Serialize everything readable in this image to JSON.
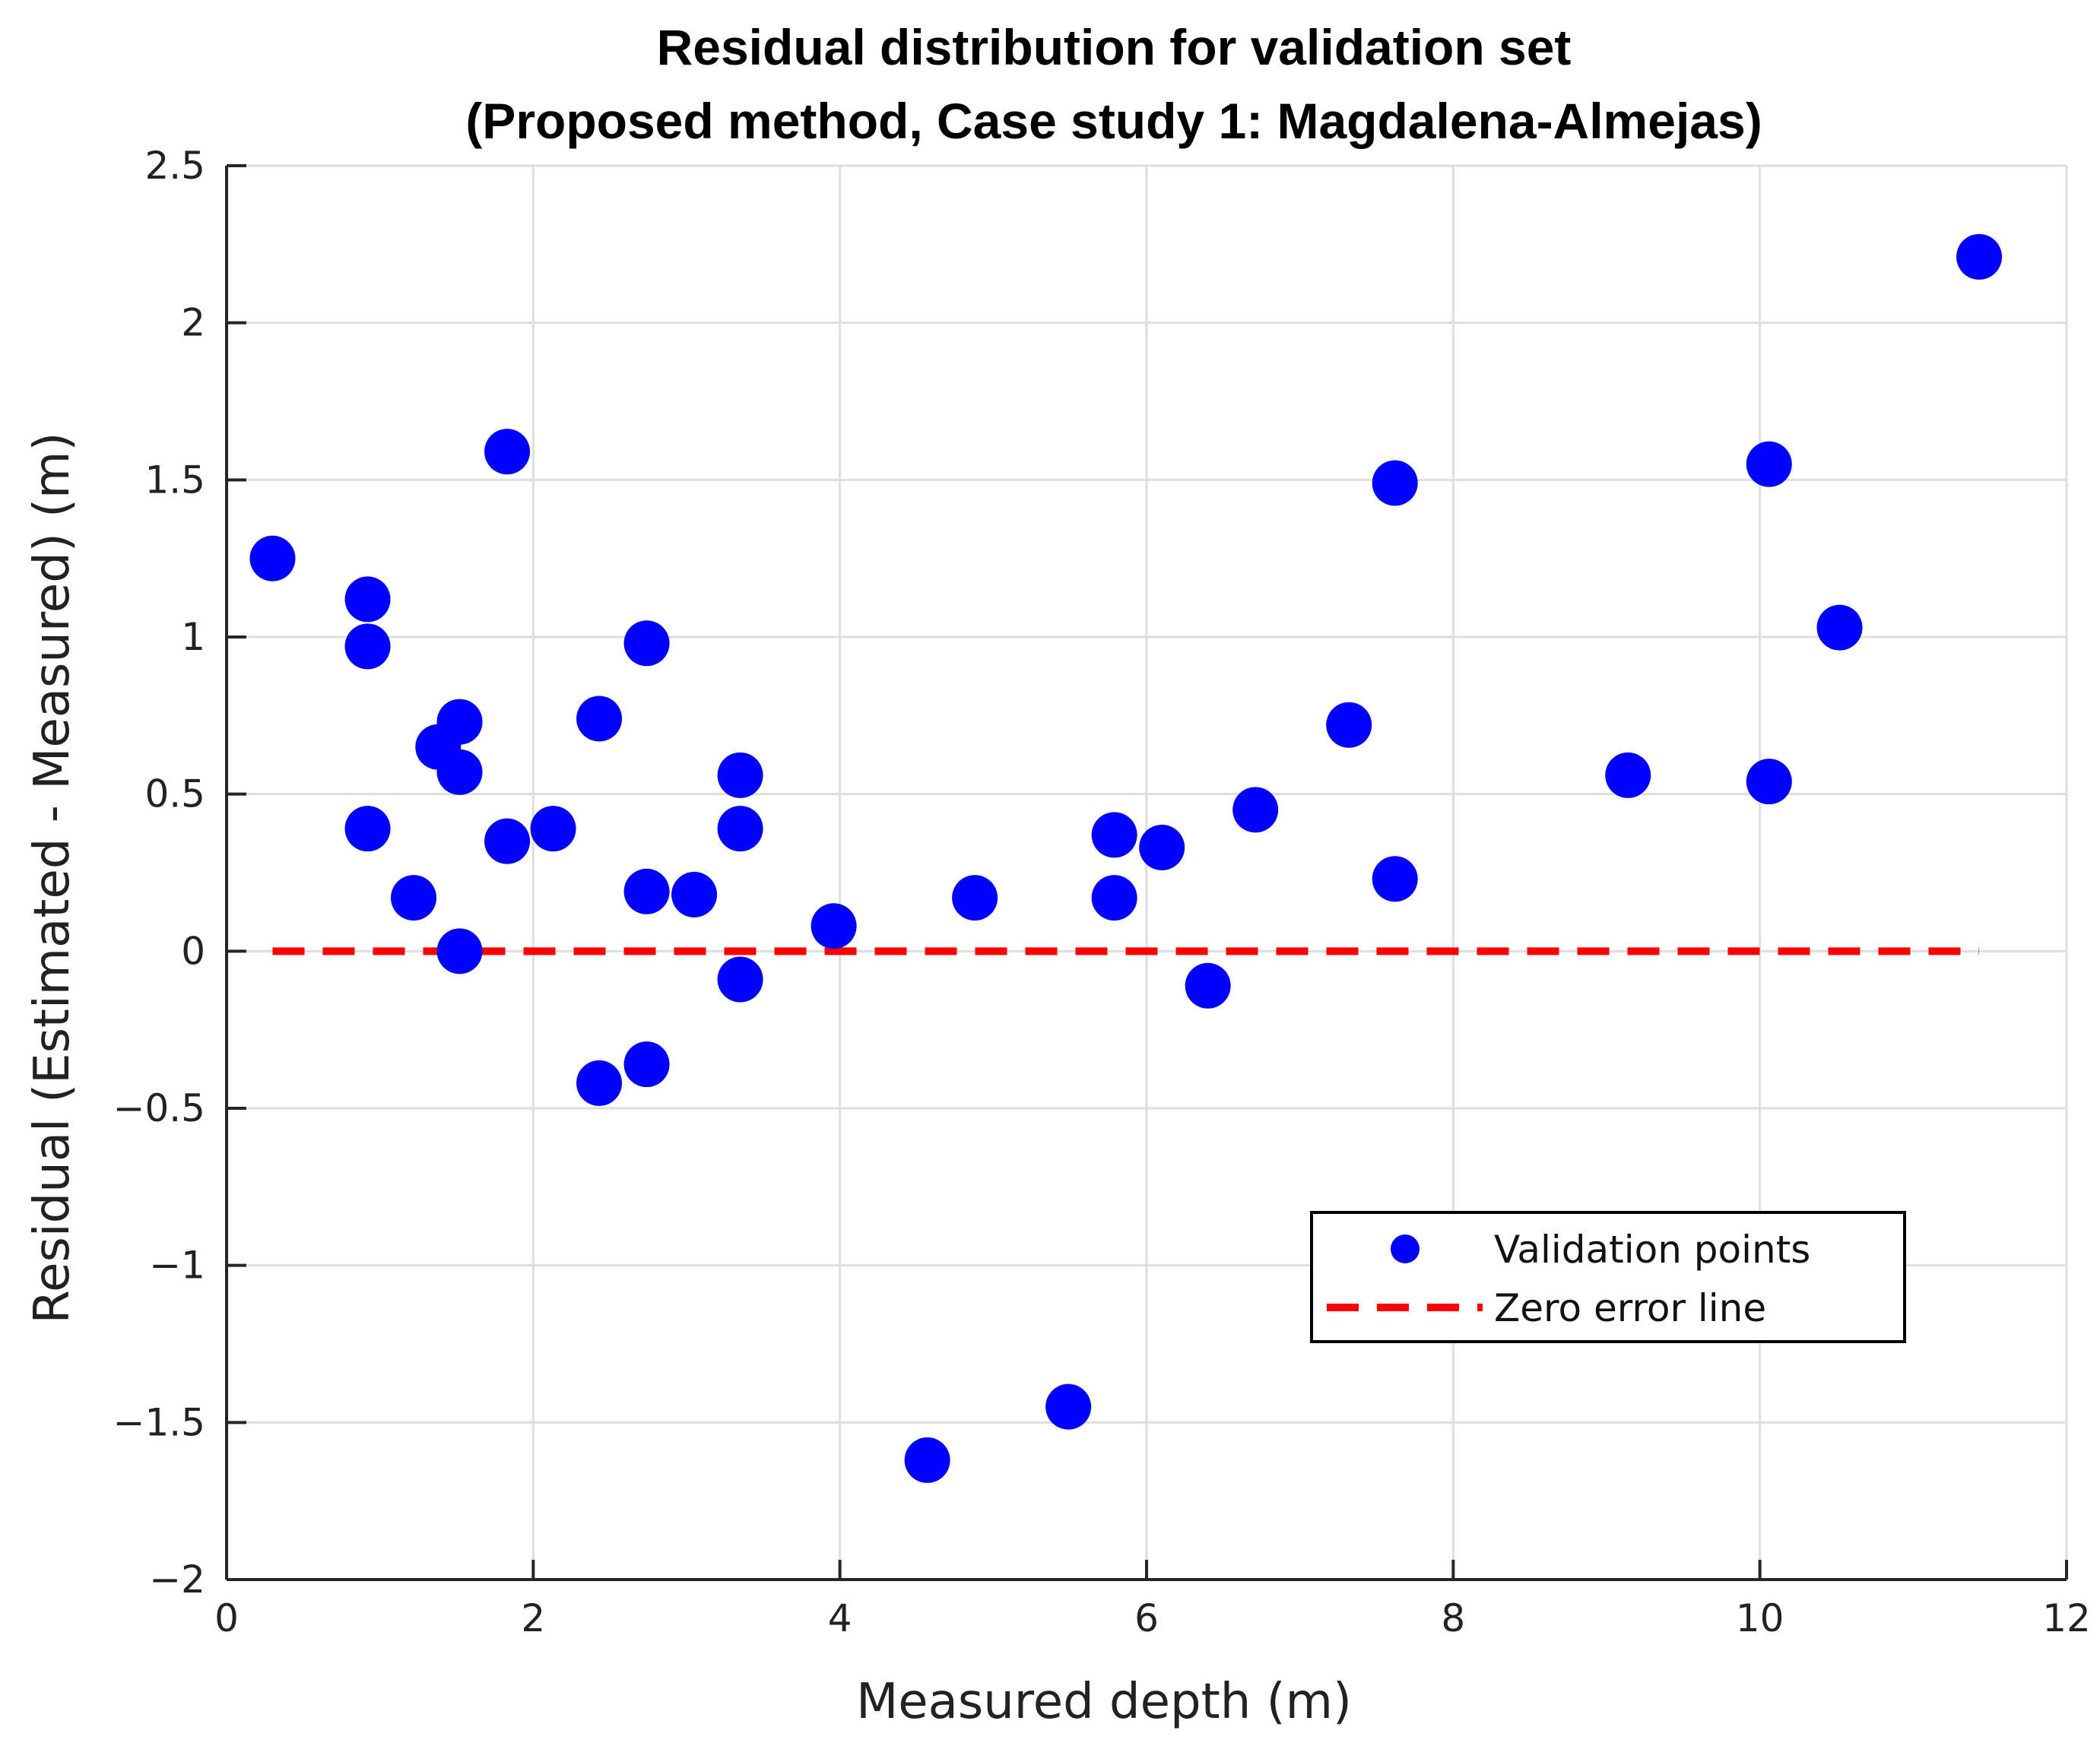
{
  "chart_data": {
    "type": "scatter",
    "title": [
      "Residual distribution for validation set",
      "(Proposed method, Case study 1: Magdalena-Almejas)"
    ],
    "xlabel": "Measured depth (m)",
    "ylabel": "Residual (Estimated - Measured) (m)",
    "xlim": [
      0,
      12
    ],
    "ylim": [
      -2,
      2.5
    ],
    "xticks": [
      0,
      2,
      4,
      6,
      8,
      10,
      12
    ],
    "xtick_labels": [
      "0",
      "2",
      "4",
      "6",
      "8",
      "10",
      "12"
    ],
    "yticks": [
      -2,
      -1.5,
      -1,
      -0.5,
      0,
      0.5,
      1,
      1.5,
      2,
      2.5
    ],
    "ytick_labels": [
      "−2",
      "−1.5",
      "−1",
      "−0.5",
      "0",
      "0.5",
      "1",
      "1.5",
      "2",
      "2.5"
    ],
    "grid": true,
    "legend_position": "lower-right",
    "series": [
      {
        "name": "Validation points",
        "kind": "scatter",
        "color": "#0000ff",
        "x": [
          0.3,
          0.92,
          0.92,
          0.92,
          1.22,
          1.38,
          1.52,
          1.52,
          1.52,
          1.83,
          1.83,
          2.13,
          2.43,
          2.43,
          2.74,
          2.74,
          2.74,
          3.05,
          3.35,
          3.35,
          3.35,
          3.96,
          4.57,
          4.88,
          5.49,
          5.79,
          5.79,
          6.1,
          6.4,
          6.71,
          7.32,
          7.62,
          7.62,
          9.14,
          10.06,
          10.06,
          10.52,
          11.43
        ],
        "y": [
          1.25,
          1.12,
          0.97,
          0.39,
          0.17,
          0.65,
          0.73,
          0.57,
          0.0,
          1.59,
          0.35,
          0.39,
          0.74,
          -0.42,
          0.98,
          0.19,
          -0.36,
          0.18,
          0.56,
          0.39,
          -0.09,
          0.08,
          -1.62,
          0.17,
          -1.45,
          0.37,
          0.17,
          0.33,
          -0.11,
          0.45,
          0.72,
          1.49,
          0.23,
          0.56,
          1.55,
          0.54,
          1.03,
          2.21
        ]
      },
      {
        "name": "Zero error line",
        "kind": "line",
        "style": "dashed",
        "color": "#ff0000",
        "x": [
          0.3,
          11.43
        ],
        "y": [
          0,
          0
        ]
      }
    ]
  }
}
